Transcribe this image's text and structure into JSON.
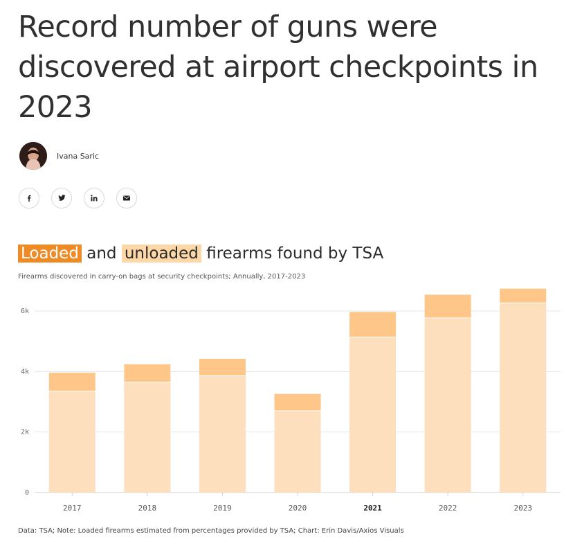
{
  "headline": "Record number of guns were discovered at airport checkpoints in 2023",
  "author": {
    "name": "Ivana Saric"
  },
  "share": [
    {
      "icon": "facebook-icon"
    },
    {
      "icon": "twitter-icon"
    },
    {
      "icon": "linkedin-icon"
    },
    {
      "icon": "email-icon"
    }
  ],
  "chart_title": {
    "loaded": "Loaded",
    "and": "and",
    "unloaded": "unloaded",
    "rest": "firearms found by TSA"
  },
  "chart_subtitle": "Firearms discovered in carry-on bags at security checkpoints; Annually, 2017-2023",
  "footnote": "Data: TSA; Note: Loaded firearms estimated from percentages provided by TSA; Chart: Erin Davis/Axios Visuals",
  "colors": {
    "loaded": "#f08a24",
    "unloaded": "#fdd7a6",
    "bar_unloaded": "#fedfbd",
    "bar_loaded": "#fec689"
  },
  "chart_data": {
    "type": "bar",
    "stacked": true,
    "categories": [
      "2017",
      "2018",
      "2019",
      "2020",
      "2021",
      "2022",
      "2023"
    ],
    "highlight_category": "2021",
    "series": [
      {
        "name": "unloaded",
        "values": [
          3350,
          3650,
          3860,
          2700,
          5140,
          5770,
          6270
        ]
      },
      {
        "name": "loaded",
        "values": [
          610,
          590,
          560,
          560,
          830,
          770,
          470
        ]
      }
    ],
    "yticks": [
      0,
      2000,
      4000,
      6000
    ],
    "ytick_labels": [
      "0",
      "2k",
      "4k",
      "6k"
    ],
    "ylim": [
      0,
      6900
    ],
    "grid": true
  }
}
